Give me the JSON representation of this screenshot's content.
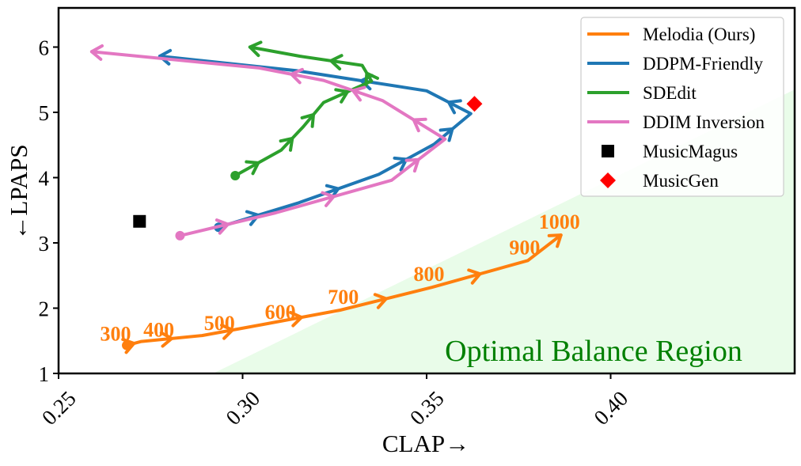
{
  "chart_data": {
    "type": "line",
    "title": "",
    "xlabel": "CLAP→",
    "ylabel": "←LPAPS",
    "xlim": [
      0.25,
      0.45
    ],
    "ylim": [
      1,
      6.6
    ],
    "x_ticks": [
      0.25,
      0.3,
      0.35,
      0.4
    ],
    "x_tick_labels": [
      "0.25",
      "0.30",
      "0.35",
      "0.40"
    ],
    "y_ticks": [
      1,
      2,
      3,
      4,
      5,
      6
    ],
    "y_tick_labels": [
      "1",
      "2",
      "3",
      "4",
      "5",
      "6"
    ],
    "grid": false,
    "legend_position": "top-right",
    "region": {
      "label": "Optimal Balance Region",
      "color": "#e9fce9",
      "label_color": "#008000",
      "polygon": [
        [
          0.292,
          1.0
        ],
        [
          0.45,
          1.0
        ],
        [
          0.45,
          5.35
        ]
      ]
    },
    "series": [
      {
        "name": "Melodia (Ours)",
        "color": "#ff7f0e",
        "marker": "",
        "x": [
          0.2685,
          0.2725,
          0.289,
          0.3055,
          0.3265,
          0.3515,
          0.3775,
          0.3865
        ],
        "y": [
          1.43,
          1.49,
          1.58,
          1.75,
          1.97,
          2.32,
          2.73,
          3.12
        ],
        "step_labels": [
          "300",
          "400",
          "500",
          "600",
          "700",
          "800",
          "900",
          "1000"
        ]
      },
      {
        "name": "DDPM-Friendly",
        "color": "#1f77b4",
        "marker": "",
        "x": [
          0.2935,
          0.315,
          0.337,
          0.352,
          0.362,
          0.35,
          0.3145,
          0.2775
        ],
        "y": [
          3.24,
          3.61,
          4.05,
          4.51,
          4.98,
          5.33,
          5.64,
          5.86
        ]
      },
      {
        "name": "SDEdit",
        "color": "#2ca02c",
        "marker": "",
        "x": [
          0.298,
          0.3105,
          0.3165,
          0.322,
          0.335,
          0.3325,
          0.3155,
          0.302
        ],
        "y": [
          4.03,
          4.42,
          4.78,
          5.15,
          5.48,
          5.72,
          5.86,
          6.0
        ]
      },
      {
        "name": "DDIM Inversion",
        "color": "#e377c2",
        "marker": "",
        "x": [
          0.283,
          0.309,
          0.3405,
          0.355,
          0.338,
          0.322,
          0.3045,
          0.259
        ],
        "y": [
          3.11,
          3.46,
          3.96,
          4.59,
          5.18,
          5.49,
          5.68,
          5.93
        ]
      },
      {
        "name": "MusicMagus",
        "color": "#000000",
        "marker": "square",
        "x": [
          0.272
        ],
        "y": [
          3.33
        ]
      },
      {
        "name": "MusicGen",
        "color": "#ff0000",
        "marker": "diamond",
        "x": [
          0.363
        ],
        "y": [
          5.13
        ]
      }
    ]
  }
}
